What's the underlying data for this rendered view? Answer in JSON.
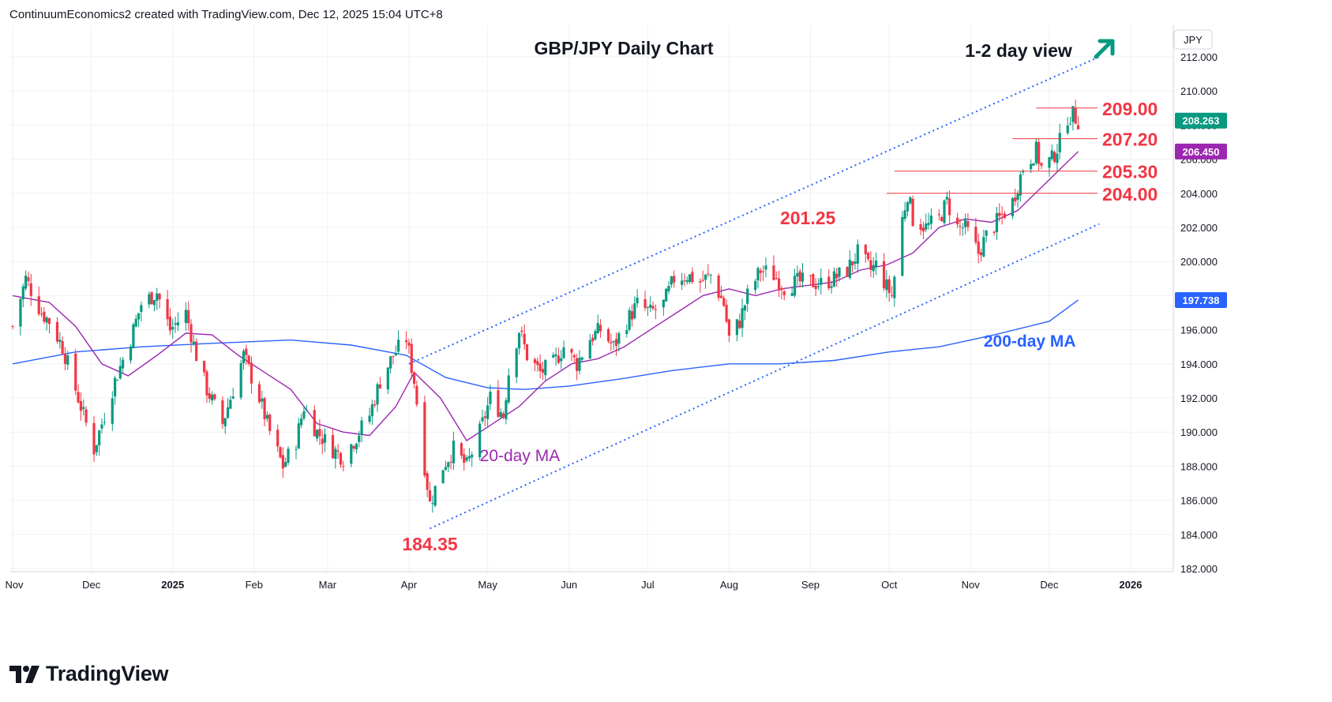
{
  "header": {
    "attribution": "ContinuumEconomics2 created with TradingView.com, Dec 12, 2025 15:04 UTC+8"
  },
  "footer": {
    "brand": "TradingView"
  },
  "colors": {
    "up": "#089981",
    "down": "#f23645",
    "level": "#f23645",
    "ma20": "#9c27b0",
    "ma200": "#2962ff",
    "channel": "#2962ff",
    "arrow": "#089981",
    "grid": "#eef0f3",
    "axis_text": "#131722"
  },
  "chart_data": {
    "type": "candlestick",
    "title": "GBP/JPY Daily Chart",
    "view_label": "1-2 day view",
    "view_direction": "up",
    "currency_label": "JPY",
    "ylim": [
      182,
      213
    ],
    "y_ticks": [
      "212.000",
      "210.000",
      "208.000",
      "206.000",
      "204.000",
      "202.000",
      "200.000",
      "198.000",
      "196.000",
      "194.000",
      "192.000",
      "190.000",
      "188.000",
      "186.000",
      "184.000",
      "182.000"
    ],
    "x_ticks": [
      {
        "label": "Nov",
        "date": "2024-11-01"
      },
      {
        "label": "Dec",
        "date": "2024-12-01"
      },
      {
        "label": "2025",
        "date": "2025-01-01"
      },
      {
        "label": "Feb",
        "date": "2025-02-01"
      },
      {
        "label": "Mar",
        "date": "2025-03-01"
      },
      {
        "label": "Apr",
        "date": "2025-04-01"
      },
      {
        "label": "May",
        "date": "2025-05-01"
      },
      {
        "label": "Jun",
        "date": "2025-06-01"
      },
      {
        "label": "Jul",
        "date": "2025-07-01"
      },
      {
        "label": "Aug",
        "date": "2025-08-01"
      },
      {
        "label": "Sep",
        "date": "2025-09-01"
      },
      {
        "label": "Oct",
        "date": "2025-10-01"
      },
      {
        "label": "Nov",
        "date": "2025-11-01"
      },
      {
        "label": "Dec",
        "date": "2025-12-01"
      },
      {
        "label": "2026",
        "date": "2026-01-01"
      }
    ],
    "price_path": [
      [
        "2024-11-01",
        196.2
      ],
      [
        "2024-11-06",
        199.0
      ],
      [
        "2024-11-12",
        197.0
      ],
      [
        "2024-11-15",
        196.5
      ],
      [
        "2024-11-20",
        195.0
      ],
      [
        "2024-11-25",
        192.5
      ],
      [
        "2024-11-28",
        191.0
      ],
      [
        "2024-12-02",
        189.0
      ],
      [
        "2024-12-06",
        191.0
      ],
      [
        "2024-12-10",
        193.0
      ],
      [
        "2024-12-16",
        195.5
      ],
      [
        "2024-12-20",
        197.5
      ],
      [
        "2024-12-26",
        198.2
      ],
      [
        "2024-12-31",
        196.0
      ],
      [
        "2025-01-06",
        197.0
      ],
      [
        "2025-01-10",
        194.5
      ],
      [
        "2025-01-14",
        192.5
      ],
      [
        "2025-01-20",
        190.5
      ],
      [
        "2025-01-24",
        192.5
      ],
      [
        "2025-01-28",
        194.5
      ],
      [
        "2025-02-03",
        192.0
      ],
      [
        "2025-02-07",
        190.0
      ],
      [
        "2025-02-12",
        188.0
      ],
      [
        "2025-02-17",
        189.5
      ],
      [
        "2025-02-20",
        191.5
      ],
      [
        "2025-02-25",
        190.0
      ],
      [
        "2025-03-03",
        189.0
      ],
      [
        "2025-03-07",
        188.5
      ],
      [
        "2025-03-11",
        189.5
      ],
      [
        "2025-03-17",
        191.0
      ],
      [
        "2025-03-21",
        193.0
      ],
      [
        "2025-03-26",
        194.5
      ],
      [
        "2025-03-31",
        195.5
      ],
      [
        "2025-04-03",
        193.0
      ],
      [
        "2025-04-07",
        188.0
      ],
      [
        "2025-04-09",
        185.8
      ],
      [
        "2025-04-14",
        188.0
      ],
      [
        "2025-04-18",
        189.0
      ],
      [
        "2025-04-23",
        188.0
      ],
      [
        "2025-04-28",
        190.0
      ],
      [
        "2025-05-02",
        192.0
      ],
      [
        "2025-05-07",
        191.0
      ],
      [
        "2025-05-09",
        193.5
      ],
      [
        "2025-05-13",
        196.0
      ],
      [
        "2025-05-16",
        194.5
      ],
      [
        "2025-05-21",
        193.5
      ],
      [
        "2025-05-26",
        194.0
      ],
      [
        "2025-05-30",
        195.0
      ],
      [
        "2025-06-04",
        194.0
      ],
      [
        "2025-06-09",
        195.5
      ],
      [
        "2025-06-13",
        196.0
      ],
      [
        "2025-06-18",
        195.0
      ],
      [
        "2025-06-23",
        196.5
      ],
      [
        "2025-06-27",
        197.5
      ],
      [
        "2025-07-02",
        197.0
      ],
      [
        "2025-07-07",
        197.5
      ],
      [
        "2025-07-11",
        199.0
      ],
      [
        "2025-07-16",
        199.2
      ],
      [
        "2025-07-21",
        198.8
      ],
      [
        "2025-07-25",
        199.2
      ],
      [
        "2025-07-30",
        197.5
      ],
      [
        "2025-08-01",
        195.5
      ],
      [
        "2025-08-05",
        196.5
      ],
      [
        "2025-08-08",
        198.0
      ],
      [
        "2025-08-13",
        199.5
      ],
      [
        "2025-08-18",
        199.2
      ],
      [
        "2025-08-22",
        198.5
      ],
      [
        "2025-08-27",
        198.8
      ],
      [
        "2025-09-01",
        198.8
      ],
      [
        "2025-09-05",
        198.7
      ],
      [
        "2025-09-10",
        199.0
      ],
      [
        "2025-09-15",
        199.5
      ],
      [
        "2025-09-19",
        200.5
      ],
      [
        "2025-09-24",
        199.5
      ],
      [
        "2025-09-26",
        199.8
      ],
      [
        "2025-09-30",
        198.5
      ],
      [
        "2025-10-02",
        198.0
      ],
      [
        "2025-10-06",
        202.5
      ],
      [
        "2025-10-08",
        204.0
      ],
      [
        "2025-10-10",
        202.5
      ],
      [
        "2025-10-15",
        202.0
      ],
      [
        "2025-10-20",
        202.5
      ],
      [
        "2025-10-23",
        203.5
      ],
      [
        "2025-10-27",
        202.0
      ],
      [
        "2025-10-30",
        202.0
      ],
      [
        "2025-11-04",
        200.5
      ],
      [
        "2025-11-07",
        201.5
      ],
      [
        "2025-11-12",
        202.5
      ],
      [
        "2025-11-17",
        203.5
      ],
      [
        "2025-11-21",
        205.5
      ],
      [
        "2025-11-26",
        206.5
      ],
      [
        "2025-11-28",
        205.5
      ],
      [
        "2025-12-02",
        206.0
      ],
      [
        "2025-12-05",
        207.0
      ],
      [
        "2025-12-08",
        208.5
      ],
      [
        "2025-12-10",
        208.6
      ],
      [
        "2025-12-12",
        208.263
      ]
    ],
    "ma20": {
      "label": "20-day MA",
      "last_value": "206.450",
      "points": [
        [
          "2024-11-01",
          198.0
        ],
        [
          "2024-11-15",
          197.6
        ],
        [
          "2024-11-25",
          196.2
        ],
        [
          "2024-12-05",
          194.0
        ],
        [
          "2024-12-15",
          193.3
        ],
        [
          "2024-12-26",
          194.5
        ],
        [
          "2025-01-06",
          195.8
        ],
        [
          "2025-01-16",
          195.7
        ],
        [
          "2025-01-26",
          194.5
        ],
        [
          "2025-02-05",
          193.5
        ],
        [
          "2025-02-15",
          192.5
        ],
        [
          "2025-02-25",
          190.5
        ],
        [
          "2025-03-07",
          190.0
        ],
        [
          "2025-03-17",
          189.8
        ],
        [
          "2025-03-27",
          191.5
        ],
        [
          "2025-04-03",
          193.5
        ],
        [
          "2025-04-13",
          192.0
        ],
        [
          "2025-04-23",
          189.5
        ],
        [
          "2025-05-03",
          190.5
        ],
        [
          "2025-05-13",
          191.5
        ],
        [
          "2025-05-23",
          193.0
        ],
        [
          "2025-06-02",
          194.0
        ],
        [
          "2025-06-12",
          194.3
        ],
        [
          "2025-06-22",
          195.0
        ],
        [
          "2025-07-02",
          196.0
        ],
        [
          "2025-07-12",
          197.0
        ],
        [
          "2025-07-22",
          198.0
        ],
        [
          "2025-08-01",
          198.4
        ],
        [
          "2025-08-11",
          198.0
        ],
        [
          "2025-08-21",
          198.4
        ],
        [
          "2025-08-31",
          198.6
        ],
        [
          "2025-09-10",
          198.8
        ],
        [
          "2025-09-20",
          199.5
        ],
        [
          "2025-09-30",
          199.8
        ],
        [
          "2025-10-10",
          200.5
        ],
        [
          "2025-10-20",
          202.0
        ],
        [
          "2025-10-30",
          202.5
        ],
        [
          "2025-11-09",
          202.3
        ],
        [
          "2025-11-19",
          203.0
        ],
        [
          "2025-11-29",
          204.5
        ],
        [
          "2025-12-12",
          206.45
        ]
      ]
    },
    "ma200": {
      "label": "200-day MA",
      "last_value": "197.738",
      "points": [
        [
          "2024-11-01",
          194.0
        ],
        [
          "2024-11-25",
          194.7
        ],
        [
          "2024-12-20",
          195.0
        ],
        [
          "2025-01-15",
          195.2
        ],
        [
          "2025-02-15",
          195.4
        ],
        [
          "2025-03-10",
          195.1
        ],
        [
          "2025-03-31",
          194.5
        ],
        [
          "2025-04-15",
          193.2
        ],
        [
          "2025-05-01",
          192.6
        ],
        [
          "2025-05-15",
          192.5
        ],
        [
          "2025-06-01",
          192.7
        ],
        [
          "2025-06-20",
          193.1
        ],
        [
          "2025-07-10",
          193.6
        ],
        [
          "2025-08-01",
          194.0
        ],
        [
          "2025-08-20",
          194.0
        ],
        [
          "2025-09-10",
          194.2
        ],
        [
          "2025-10-01",
          194.7
        ],
        [
          "2025-10-20",
          195.0
        ],
        [
          "2025-11-10",
          195.7
        ],
        [
          "2025-12-01",
          196.5
        ],
        [
          "2025-12-12",
          197.74
        ]
      ]
    },
    "channel": [
      {
        "from": [
          "2025-04-01",
          194.0
        ],
        "to": [
          "2025-12-20",
          212.0
        ]
      },
      {
        "from": [
          "2025-04-09",
          184.35
        ],
        "to": [
          "2025-12-20",
          202.2
        ]
      }
    ],
    "levels": [
      {
        "label": "209.00",
        "value": 209.0,
        "from": "2025-11-26"
      },
      {
        "label": "207.20",
        "value": 207.2,
        "from": "2025-11-17"
      },
      {
        "label": "205.30",
        "value": 205.3,
        "from": "2025-10-03"
      },
      {
        "label": "204.00",
        "value": 204.0,
        "from": "2025-09-30"
      }
    ],
    "annotations": [
      {
        "text": "201.25",
        "date": "2025-08-31",
        "value": 201.25
      },
      {
        "text": "184.35",
        "date": "2025-04-09",
        "value": 184.35
      }
    ],
    "last_price": "208.263",
    "grid": true
  }
}
